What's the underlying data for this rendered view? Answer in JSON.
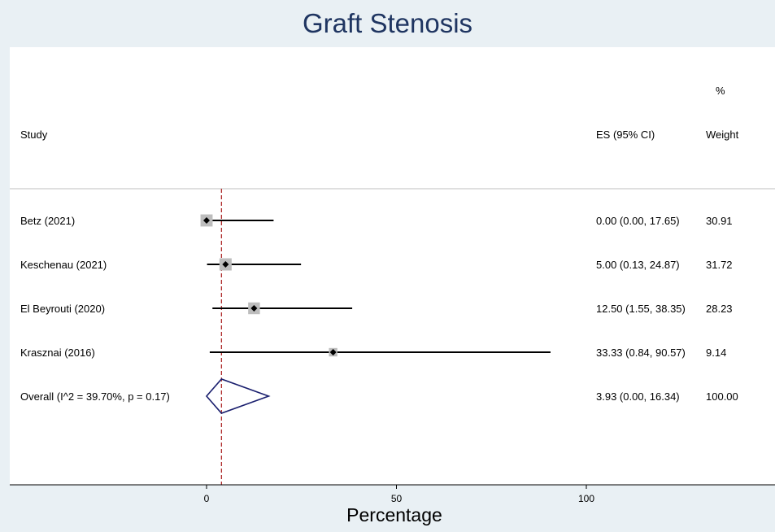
{
  "chart_data": {
    "type": "forest",
    "title": "Graft Stenosis",
    "xlabel": "Percentage",
    "xlim": [
      -3,
      148
    ],
    "xticks": [
      0,
      50,
      100
    ],
    "headers": {
      "study": "Study",
      "es": "ES (95% CI)",
      "weight_line1": "%",
      "weight_line2": "Weight"
    },
    "studies": [
      {
        "label": "Betz (2021)",
        "es": 0.0,
        "lo": 0.0,
        "hi": 17.65,
        "weight": 30.91,
        "es_text": "0.00 (0.00, 17.65)",
        "weight_text": "30.91"
      },
      {
        "label": "Keschenau (2021)",
        "es": 5.0,
        "lo": 0.13,
        "hi": 24.87,
        "weight": 31.72,
        "es_text": "5.00 (0.13, 24.87)",
        "weight_text": "31.72"
      },
      {
        "label": "El Beyrouti (2020)",
        "es": 12.5,
        "lo": 1.55,
        "hi": 38.35,
        "weight": 28.23,
        "es_text": "12.50 (1.55, 38.35)",
        "weight_text": "28.23"
      },
      {
        "label": "Krasznai (2016)",
        "es": 33.33,
        "lo": 0.84,
        "hi": 90.57,
        "weight": 9.14,
        "es_text": "33.33 (0.84, 90.57)",
        "weight_text": "9.14"
      }
    ],
    "overall": {
      "label": "Overall  (I^2 = 39.70%, p = 0.17)",
      "es": 3.93,
      "lo": 0.0,
      "hi": 16.34,
      "es_text": "3.93 (0.00, 16.34)",
      "weight_text": "100.00"
    },
    "colors": {
      "title": "#1f3561",
      "diamond": "#1a1f6e",
      "reference": "#b03030",
      "box": "#bdbdbd",
      "background": "#e9f0f4"
    }
  }
}
